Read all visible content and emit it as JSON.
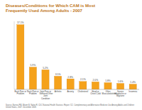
{
  "chart_data": {
    "type": "bar",
    "title": "Diseases/Conditions for Which CAM is Most Frequently Used Among Adults - 2007",
    "note": "Source: Barnes PM, Bloom B, Nahin R. CDC National Health Statistics Report #12. Complementary and Alternative Medicine Use Among Adults and Children: United States, 2007. December 2008.",
    "categories": [
      "Back Pain or Problem",
      "Neck Pain or Problem",
      "Joint Pain or Stiffness/Other Joint Condition",
      "Arthritis",
      "Anxiety",
      "Cholesterol",
      "Head or Chest Cold",
      "Other Musculoskeletal",
      "Severe Headache or Migraine",
      "Insomnia"
    ],
    "values": [
      17.1,
      5.9,
      5.2,
      3.5,
      2.8,
      2.1,
      2.0,
      1.8,
      1.6,
      1.4
    ],
    "value_labels": [
      "17.1%",
      "5.9%",
      "5.2%",
      "3.5%",
      "2.8%",
      "2.1%",
      "2.0%",
      "1.8%",
      "1.6%",
      "1.4%"
    ],
    "color": "#f5a21b",
    "ylim": [
      0,
      18
    ],
    "data_labels": true,
    "tick_labels": "x"
  }
}
